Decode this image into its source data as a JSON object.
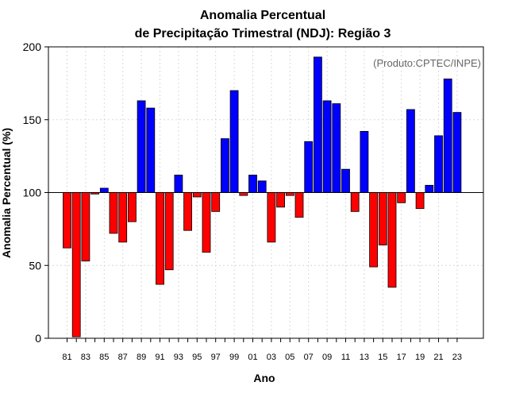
{
  "chart_data": {
    "type": "bar",
    "title": [
      "Anomalia Percentual",
      "de Precipitação Trimestral (NDJ): Região 3"
    ],
    "xlabel": "Ano",
    "ylabel": "Anomalia Percentual (%)",
    "annotation": "(Produto:CPTEC/INPE)",
    "baseline": 100,
    "ylim": [
      0,
      200
    ],
    "yticks": [
      0,
      50,
      100,
      150,
      200
    ],
    "grid": true,
    "colors": {
      "above": "#0000ff",
      "below": "#ff0000",
      "edge": "#000000",
      "grid": "#d9d9d9",
      "baseline": "#000000"
    },
    "categories": [
      "81",
      "82",
      "83",
      "84",
      "85",
      "86",
      "87",
      "88",
      "89",
      "90",
      "91",
      "92",
      "93",
      "94",
      "95",
      "96",
      "97",
      "98",
      "99",
      "00",
      "01",
      "02",
      "03",
      "04",
      "05",
      "06",
      "07",
      "08",
      "09",
      "10",
      "11",
      "12",
      "13",
      "14",
      "15",
      "16",
      "17",
      "18",
      "19",
      "20",
      "21",
      "22",
      "23"
    ],
    "xtick_labels": [
      "81",
      "83",
      "85",
      "87",
      "89",
      "91",
      "93",
      "95",
      "97",
      "99",
      "01",
      "03",
      "05",
      "07",
      "09",
      "11",
      "13",
      "15",
      "17",
      "19",
      "21",
      "23"
    ],
    "values": [
      62,
      1,
      53,
      99,
      103,
      72,
      66,
      80,
      163,
      158,
      37,
      47,
      112,
      74,
      97,
      59,
      87,
      137,
      170,
      98,
      112,
      108,
      66,
      90,
      98,
      83,
      135,
      193,
      163,
      161,
      116,
      87,
      142,
      49,
      64,
      35,
      93,
      157,
      89,
      105,
      139,
      178,
      155
    ]
  }
}
